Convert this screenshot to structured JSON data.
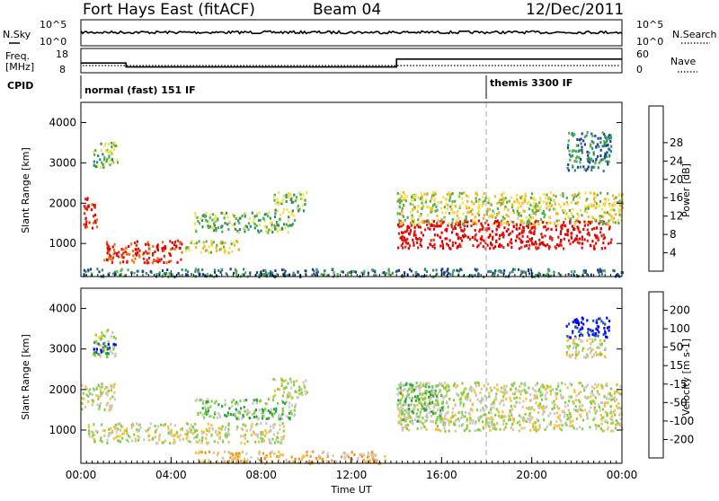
{
  "header": {
    "station": "Fort Hays East (fitACF)",
    "beam": "Beam 04",
    "date": "12/Dec/2011"
  },
  "params_panel": {
    "nsky_label": "N.Sky",
    "freq_label_1": "Freq.",
    "freq_label_2": "[MHz]",
    "cpid_label": "CPID",
    "nsearch_label": "N.Search",
    "nave_label": "Nave",
    "nsky_ticks": [
      "10^5",
      "10^0"
    ],
    "nsearch_ticks": [
      "10^5",
      "10^0"
    ],
    "freq_ticks": [
      "18",
      "8"
    ],
    "nave_ticks": [
      "60",
      "0"
    ],
    "cpid_modes": [
      {
        "label": "normal (fast) 151 IF",
        "start_hour": 0
      },
      {
        "label": "themis 3300 IF",
        "start_hour": 18
      }
    ],
    "freq_steps": [
      {
        "start_hour": 0,
        "end_hour": 2,
        "value_mhz": 12
      },
      {
        "start_hour": 2,
        "end_hour": 14,
        "value_mhz": 10
      },
      {
        "start_hour": 14,
        "end_hour": 24,
        "value_mhz": 14
      }
    ]
  },
  "x_axis": {
    "label": "Time UT",
    "ticks": [
      "00:00",
      "04:00",
      "08:00",
      "12:00",
      "16:00",
      "20:00",
      "00:00"
    ]
  },
  "chart_data": [
    {
      "type": "heatmap",
      "name": "power",
      "ylabel": "Slant Range [km]",
      "yticks": [
        "1000",
        "2000",
        "3000",
        "4000"
      ],
      "ylim": [
        180,
        4500
      ],
      "xlim": [
        0,
        24
      ],
      "colorbar_label": "Power [dB]",
      "colorbar_ticks": [
        "4",
        "8",
        "12",
        "16",
        "20",
        "24",
        "28"
      ],
      "colors": [
        "#0000ff",
        "#1e3c9c",
        "#2c8a6e",
        "#4fb050",
        "#f2e24a",
        "#f5b020",
        "#f07010",
        "#e02010",
        "#e00000"
      ],
      "regions": [
        {
          "t0": 0.1,
          "t1": 0.7,
          "r0": 1400,
          "r1": 2200,
          "level": 7
        },
        {
          "t0": 0.5,
          "t1": 1.6,
          "r0": 2900,
          "r1": 3600,
          "level": 3
        },
        {
          "t0": 1.0,
          "t1": 4.5,
          "r0": 550,
          "r1": 1100,
          "level": 7
        },
        {
          "t0": 4.5,
          "t1": 7.0,
          "r0": 800,
          "r1": 1100,
          "level": 4
        },
        {
          "t0": 5.0,
          "t1": 9.5,
          "r0": 1300,
          "r1": 1800,
          "level": 3
        },
        {
          "t0": 8.5,
          "t1": 10.0,
          "r0": 1800,
          "r1": 2300,
          "level": 3
        },
        {
          "t0": 14.0,
          "t1": 23.5,
          "r0": 900,
          "r1": 1600,
          "level": 8
        },
        {
          "t0": 14.0,
          "t1": 24.0,
          "r0": 1500,
          "r1": 2300,
          "level": 4
        },
        {
          "t0": 21.5,
          "t1": 23.5,
          "r0": 2800,
          "r1": 3800,
          "level": 2
        },
        {
          "t0": 0.0,
          "t1": 24.0,
          "r0": 200,
          "r1": 400,
          "level": 2
        }
      ]
    },
    {
      "type": "heatmap",
      "name": "velocity",
      "ylabel": "Slant Range [km]",
      "yticks": [
        "1000",
        "2000",
        "3000",
        "4000"
      ],
      "ylim": [
        180,
        4500
      ],
      "xlim": [
        0,
        24
      ],
      "colorbar_label": "Velocity [m s-1]",
      "colorbar_ticks": [
        "200",
        "100",
        "50",
        "15",
        "-15",
        "-50",
        "-100",
        "-200"
      ],
      "colors": [
        "#0000ff",
        "#2050b0",
        "#2ca040",
        "#7ed040",
        "#c8c8c8",
        "#f5c040",
        "#f59020",
        "#e03010",
        "#e00000"
      ],
      "regions": [
        {
          "t0": 0.0,
          "t1": 1.5,
          "r0": 1500,
          "r1": 2200,
          "level": 4
        },
        {
          "t0": 0.5,
          "t1": 1.5,
          "r0": 2800,
          "r1": 3500,
          "level": 4
        },
        {
          "t0": 0.5,
          "t1": 1.5,
          "r0": 2900,
          "r1": 3200,
          "level": 1
        },
        {
          "t0": 0.3,
          "t1": 9.0,
          "r0": 700,
          "r1": 1200,
          "level": 4
        },
        {
          "t0": 5.0,
          "t1": 9.5,
          "r0": 1300,
          "r1": 1800,
          "level": 3
        },
        {
          "t0": 8.5,
          "t1": 10.0,
          "r0": 1800,
          "r1": 2300,
          "level": 4
        },
        {
          "t0": 5.0,
          "t1": 13.5,
          "r0": 200,
          "r1": 500,
          "level": 5
        },
        {
          "t0": 14.0,
          "t1": 24.0,
          "r0": 1000,
          "r1": 2200,
          "level": 4
        },
        {
          "t0": 14.0,
          "t1": 16.0,
          "r0": 1200,
          "r1": 2200,
          "level": 3
        },
        {
          "t0": 21.5,
          "t1": 23.5,
          "r0": 3300,
          "r1": 3800,
          "level": 0
        },
        {
          "t0": 21.5,
          "t1": 23.5,
          "r0": 2800,
          "r1": 3300,
          "level": 4
        }
      ]
    }
  ]
}
